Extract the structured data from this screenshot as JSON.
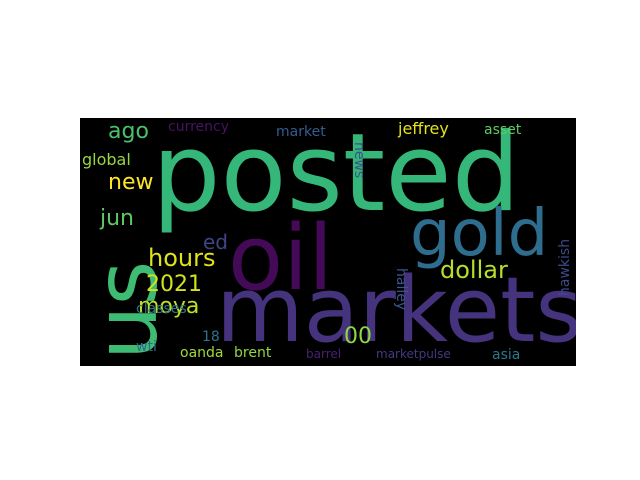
{
  "words": [
    {
      "text": "posted",
      "color": "#35b779"
    },
    {
      "text": "oil",
      "color": "#440a57"
    },
    {
      "text": "markets",
      "color": "#46337e"
    },
    {
      "text": "gold",
      "color": "#2f6d8e"
    },
    {
      "text": "us",
      "color": "#3fbc73"
    },
    {
      "text": "dollar",
      "color": "#b8de29"
    },
    {
      "text": "hours",
      "color": "#dfe318"
    },
    {
      "text": "2021",
      "color": "#d2e21b"
    },
    {
      "text": "moya",
      "color": "#c0df25"
    },
    {
      "text": "ago",
      "color": "#4ac16d"
    },
    {
      "text": "new",
      "color": "#fde725"
    },
    {
      "text": "jun",
      "color": "#5ec962"
    },
    {
      "text": "ed",
      "color": "#414487"
    },
    {
      "text": "00",
      "color": "#8fd744"
    },
    {
      "text": "jeffrey",
      "color": "#e5e419"
    },
    {
      "text": "global",
      "color": "#95d840"
    },
    {
      "text": "currency",
      "color": "#471365"
    },
    {
      "text": "market",
      "color": "#365c8d"
    },
    {
      "text": "asset",
      "color": "#5ec962"
    },
    {
      "text": "news",
      "color": "#3b528b"
    },
    {
      "text": "hawkish",
      "color": "#3e4a89"
    },
    {
      "text": "halley",
      "color": "#39568c"
    },
    {
      "text": "classes",
      "color": "#2a788e"
    },
    {
      "text": "18",
      "color": "#2c728e"
    },
    {
      "text": "wti",
      "color": "#31688e"
    },
    {
      "text": "oanda",
      "color": "#a0da39"
    },
    {
      "text": "brent",
      "color": "#90d743"
    },
    {
      "text": "barrel",
      "color": "#482173"
    },
    {
      "text": "marketpulse",
      "color": "#453781"
    },
    {
      "text": "asia",
      "color": "#2a788e"
    }
  ]
}
